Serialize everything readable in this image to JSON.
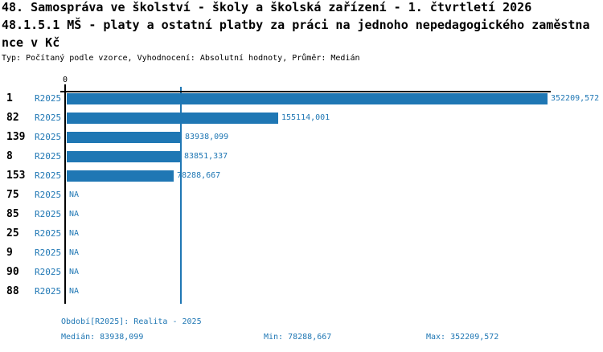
{
  "header": {
    "title_line1": "48. Samospráva ve školství - školy a školská zařízení - 1. čtvrtletí 2026",
    "title_line2": "48.1.5.1 MŠ - platy a ostatní platby za práci na jednoho nepedagogického zaměstna",
    "title_line3": "nce v Kč",
    "meta_line": "Typ: Počítaný podle vzorce, Vyhodnocení: Absolutní hodnoty, Průměr: Medián"
  },
  "colors": {
    "accent_blue": "#1f77b4",
    "axis_black": "#000000",
    "background": "#ffffff"
  },
  "chart_data": {
    "type": "bar",
    "orientation": "horizontal",
    "title": "48.1.5.1 MŠ - platy a ostatní platby za práci na jednoho nepedagogického zaměstnance v Kč",
    "x_axis": {
      "origin_label": "0",
      "min": 0,
      "max_value": 352209.572
    },
    "median_reference_line": 83938.099,
    "series_period_label": "R2025",
    "categories": [
      "1",
      "82",
      "139",
      "8",
      "153",
      "75",
      "85",
      "25",
      "9",
      "90",
      "88"
    ],
    "values": [
      352209.572,
      155114.001,
      83938.099,
      83851.337,
      78288.667,
      null,
      null,
      null,
      null,
      null,
      null
    ],
    "value_labels": [
      "352209,572",
      "155114,001",
      "83938,099",
      "83851,337",
      "78288,667",
      "NA",
      "NA",
      "NA",
      "NA",
      "NA",
      "NA"
    ],
    "legend_position": "none",
    "grid": "off"
  },
  "rows": [
    {
      "id": "1",
      "period": "R2025",
      "value_label": "352209,572"
    },
    {
      "id": "82",
      "period": "R2025",
      "value_label": "155114,001"
    },
    {
      "id": "139",
      "period": "R2025",
      "value_label": "83938,099"
    },
    {
      "id": "8",
      "period": "R2025",
      "value_label": "83851,337"
    },
    {
      "id": "153",
      "period": "R2025",
      "value_label": "78288,667"
    },
    {
      "id": "75",
      "period": "R2025",
      "value_label": "NA"
    },
    {
      "id": "85",
      "period": "R2025",
      "value_label": "NA"
    },
    {
      "id": "25",
      "period": "R2025",
      "value_label": "NA"
    },
    {
      "id": "9",
      "period": "R2025",
      "value_label": "NA"
    },
    {
      "id": "90",
      "period": "R2025",
      "value_label": "NA"
    },
    {
      "id": "88",
      "period": "R2025",
      "value_label": "NA"
    }
  ],
  "footer": {
    "period_label": "Období[R2025]: Realita - 2025",
    "median_label": "Medián: 83938,099",
    "min_label": "Min: 78288,667",
    "max_label": "Max: 352209,572"
  }
}
